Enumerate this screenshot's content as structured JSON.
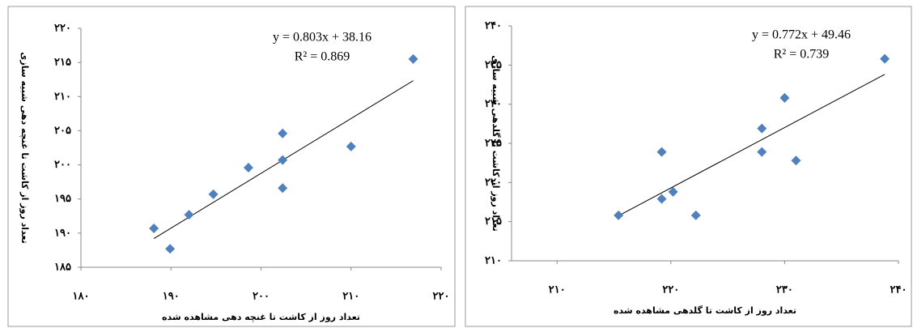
{
  "chart_data": [
    {
      "type": "scatter",
      "x_label": "تعداد روز از کاشت تا غنچه دهی مشاهده شده",
      "y_label": "تعداد روز از کاشت تا غنچه دهی شبیه سازی",
      "equation": "y = 0.803x + 38.16",
      "r_squared": "R² = 0.869",
      "trendline": {
        "slope": 0.803,
        "intercept": 38.16
      },
      "color": "#4f81bd",
      "x": [
        188.1,
        189.9,
        192.0,
        194.7,
        198.6,
        202.4,
        202.4,
        202.4,
        210.0,
        216.9
      ],
      "y": [
        190.7,
        187.7,
        192.7,
        195.7,
        199.6,
        204.6,
        200.7,
        196.6,
        202.7,
        215.5
      ],
      "xlim": [
        180,
        220
      ],
      "xticks": [
        {
          "value": 180,
          "label": "۱۸۰"
        },
        {
          "value": 190,
          "label": "۱۹۰"
        },
        {
          "value": 200,
          "label": "۲۰۰"
        },
        {
          "value": 210,
          "label": "۲۱۰"
        },
        {
          "value": 220,
          "label": "۲۲۰"
        }
      ],
      "ylim": [
        185,
        220
      ],
      "yticks": [
        {
          "value": 185,
          "label": "۱۸۵"
        },
        {
          "value": 190,
          "label": "۱۹۰"
        },
        {
          "value": 195,
          "label": "۱۹۵"
        },
        {
          "value": 200,
          "label": "۲۰۰"
        },
        {
          "value": 205,
          "label": "۲۰۵"
        },
        {
          "value": 210,
          "label": "۲۱۰"
        },
        {
          "value": 215,
          "label": "۲۱۵"
        },
        {
          "value": 220,
          "label": "۲۲۰"
        }
      ]
    },
    {
      "type": "scatter",
      "x_label": "تعداد روز از کاشت تا گلدهی مشاهده شده",
      "y_label": "تعداد روز از کاشت تا گلدهی شبیه سازی",
      "equation": "y = 0.772x + 49.46",
      "r_squared": "R² = 0.739",
      "trendline": {
        "slope": 0.772,
        "intercept": 49.46
      },
      "color": "#4f81bd",
      "x": [
        215.4,
        219.2,
        219.2,
        220.2,
        222.2,
        228.0,
        228.0,
        230.0,
        231.0,
        238.8
      ],
      "y": [
        215.8,
        217.9,
        223.9,
        218.8,
        215.8,
        226.9,
        223.9,
        230.8,
        222.8,
        235.8
      ],
      "xlim": [
        206,
        240
      ],
      "xticks": [
        {
          "value": 210,
          "label": "۲۱۰"
        },
        {
          "value": 220,
          "label": "۲۲۰"
        },
        {
          "value": 230,
          "label": "۲۳۰"
        },
        {
          "value": 240,
          "label": "۲۴۰"
        }
      ],
      "ylim": [
        210,
        240
      ],
      "yticks": [
        {
          "value": 210,
          "label": "۲۱۰"
        },
        {
          "value": 215,
          "label": "۲۱۵"
        },
        {
          "value": 220,
          "label": "۲۲۰"
        },
        {
          "value": 225,
          "label": "۲۲۵"
        },
        {
          "value": 230,
          "label": "۲۳۰"
        },
        {
          "value": 235,
          "label": "۲۳۵"
        },
        {
          "value": 240,
          "label": "۲۴۰"
        }
      ]
    }
  ]
}
